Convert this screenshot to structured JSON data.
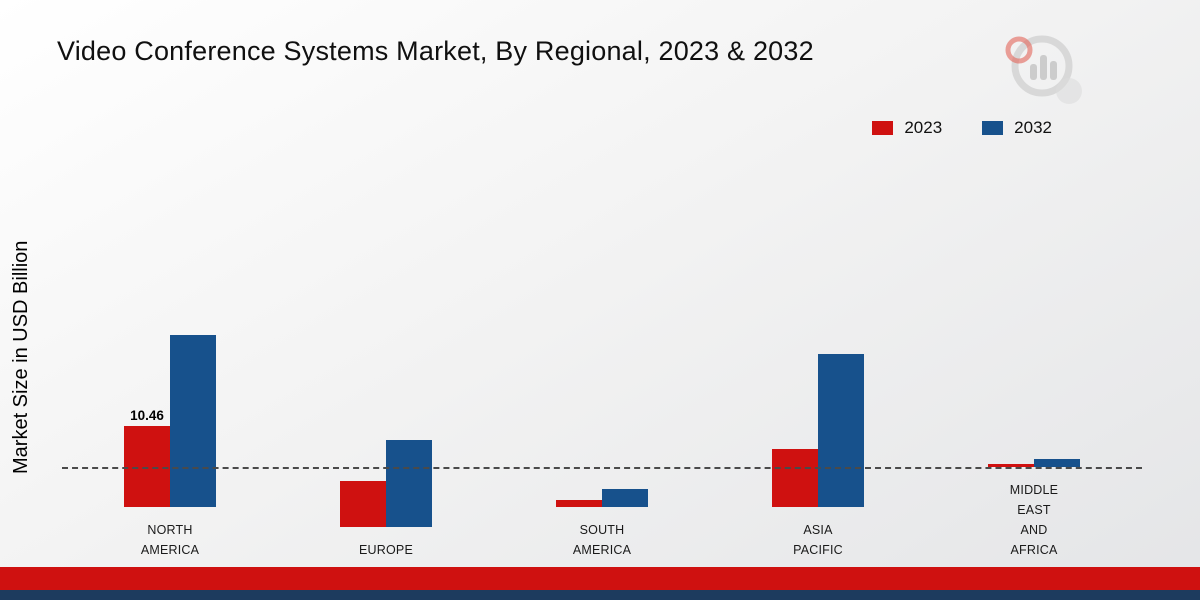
{
  "chart_data": {
    "type": "bar",
    "title": "Video Conference Systems Market, By Regional, 2023 & 2032",
    "ylabel": "Market Size in USD Billion",
    "xlabel": "",
    "categories": [
      "NORTH\nAMERICA",
      "EUROPE",
      "SOUTH\nAMERICA",
      "ASIA\nPACIFIC",
      "MIDDLE\nEAST\nAND\nAFRICA"
    ],
    "series": [
      {
        "name": "2023",
        "color": "#cf1110",
        "values": [
          10.46,
          6.0,
          0.85,
          7.5,
          0.4
        ]
      },
      {
        "name": "2032",
        "color": "#17518c",
        "values": [
          22.3,
          11.3,
          2.3,
          19.9,
          1.0
        ]
      }
    ],
    "annotations": [
      {
        "series": "2023",
        "category_index": 0,
        "text": "10.46"
      }
    ],
    "ylim": [
      0,
      24
    ],
    "grid": false,
    "baseline_style": "dashed",
    "legend_position": "top-right"
  },
  "footer": {
    "band_red": "#cf1110",
    "band_navy": "#1d3b5e"
  }
}
